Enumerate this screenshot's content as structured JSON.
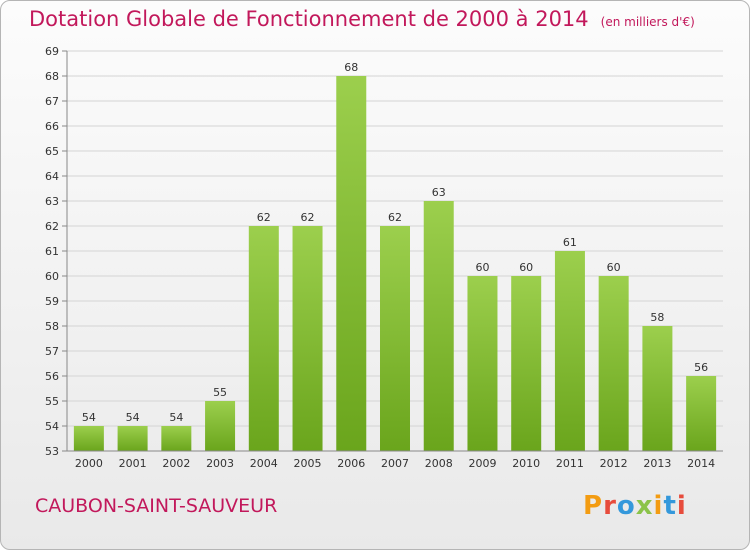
{
  "header": {
    "title": "Dotation Globale de Fonctionnement de 2000 à 2014",
    "unit": "(en milliers d'€)"
  },
  "footer": {
    "commune": "CAUBON-SAINT-SAUVEUR",
    "logo_letters": [
      "P",
      "r",
      "o",
      "x",
      "i",
      "t",
      "i"
    ],
    "logo_colors": [
      "#f39c12",
      "#e74c3c",
      "#3498db",
      "#8bc34a",
      "#f39c12",
      "#3498db",
      "#e74c3c"
    ]
  },
  "chart_data": {
    "type": "bar",
    "title": "Dotation Globale de Fonctionnement de 2000 à 2014",
    "categories": [
      "2000",
      "2001",
      "2002",
      "2003",
      "2004",
      "2005",
      "2006",
      "2007",
      "2008",
      "2009",
      "2010",
      "2011",
      "2012",
      "2013",
      "2014"
    ],
    "values": [
      54,
      54,
      54,
      55,
      62,
      62,
      68,
      62,
      63,
      60,
      60,
      61,
      60,
      58,
      56
    ],
    "ylim": [
      53,
      69
    ],
    "yticks": [
      "53",
      "54",
      "55",
      "56",
      "57",
      "58",
      "59",
      "60",
      "61",
      "62",
      "63",
      "64",
      "65",
      "66",
      "67",
      "68",
      "69"
    ],
    "grid": true,
    "bar_color_top": "#9ccf4d",
    "bar_color_bottom": "#6aa51c"
  }
}
